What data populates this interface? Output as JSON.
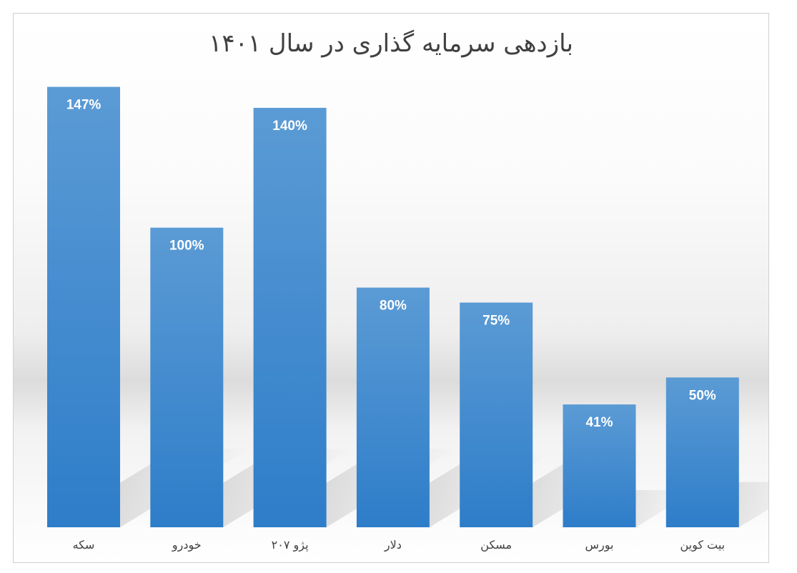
{
  "chart_data": {
    "type": "bar",
    "title": "بازدهی سرمایه گذاری در سال ۱۴۰۱",
    "categories": [
      "سکه",
      "خودرو",
      "پژو ۲۰۷",
      "دلار",
      "مسکن",
      "بورس",
      "بیت کوین"
    ],
    "values": [
      147,
      100,
      140,
      80,
      75,
      41,
      50
    ],
    "value_labels": [
      "147%",
      "100%",
      "140%",
      "80%",
      "75%",
      "41%",
      "50%"
    ],
    "xlabel": "",
    "ylabel": "",
    "ylim": [
      0,
      150
    ],
    "grid": false,
    "legend": "none",
    "colors": {
      "bar_top": "#5b9bd5",
      "bar_bottom": "#2e7dc9",
      "shadow": "#bdbdbd"
    }
  }
}
